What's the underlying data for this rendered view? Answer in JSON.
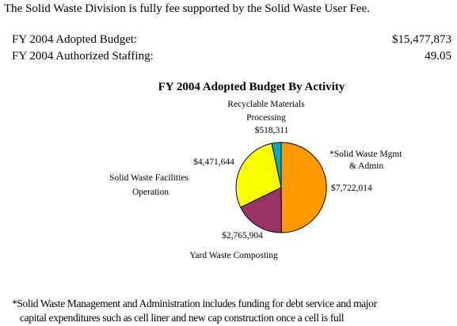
{
  "intro": "The Solid Waste Division is fully fee supported by the Solid Waste User Fee.",
  "summary": {
    "budget_label": "FY 2004 Adopted Budget:",
    "budget_value": "$15,477,873",
    "staff_label": "FY 2004 Authorized Staffing:",
    "staff_value": "49.05"
  },
  "footnote": {
    "line1": "*Solid Waste Management and Administration includes funding for debt service and major",
    "line2": "capital expenditures such as cell liner and new cap construction once a cell is full"
  },
  "chart_data": {
    "type": "pie",
    "title": "FY 2004 Adopted Budget By Activity",
    "start_angle_deg": 0,
    "direction": "clockwise",
    "slices": [
      {
        "name": "*Solid Waste Mgmt & Admin",
        "label_lines": [
          "*Solid Waste Mgmt",
          "& Admin"
        ],
        "value": 7722014,
        "value_label": "$7,722,014",
        "color": "#FF9900"
      },
      {
        "name": "Yard Waste Composting",
        "label_lines": [
          "Yard Waste Composting"
        ],
        "value": 2765904,
        "value_label": "$2,765,904",
        "color": "#993366"
      },
      {
        "name": "Solid Waste Facilities Operation",
        "label_lines": [
          "Solid Waste Facilities",
          "Operation"
        ],
        "value": 4471644,
        "value_label": "$4,471,644",
        "color": "#FFFF00"
      },
      {
        "name": "Recyclable Materials Processing",
        "label_lines": [
          "Recyclable Materials",
          "Processing"
        ],
        "value": 518311,
        "value_label": "$518,311",
        "color": "#00B0C0"
      }
    ]
  }
}
